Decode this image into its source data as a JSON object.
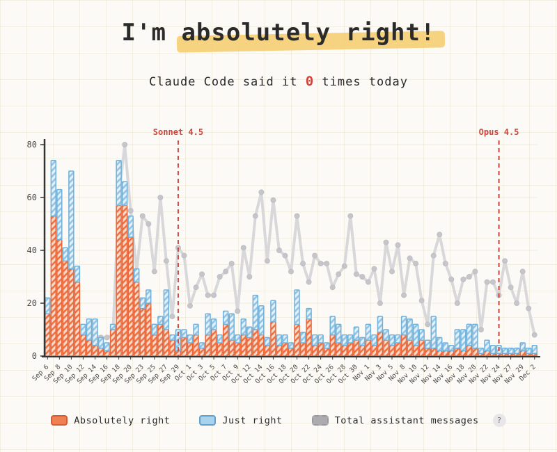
{
  "header": {
    "title_prefix": "I'm ",
    "title_highlight": "absolutely right!",
    "subtitle_before": "Claude Code said it ",
    "subtitle_count": "0",
    "subtitle_after": " times today"
  },
  "legend": {
    "items": [
      {
        "label": "Absolutely right",
        "fill": "#EF8052",
        "border": "#D95B35",
        "style": "solid"
      },
      {
        "label": "Just right",
        "fill": "#A9D3ED",
        "border": "#5F9FCC",
        "style": "solid"
      },
      {
        "label": "Total assistant messages",
        "fill": "#ABABB0",
        "border": "#97979D",
        "style": "dashed"
      }
    ],
    "help_label": "?"
  },
  "colors": {
    "paper": "#FBFAF6",
    "grid": "#E8DCC4",
    "title_highlight": "#F5C964",
    "subtitle_accent": "#D2413A",
    "bar_orange_outline": "#E8663B",
    "bar_orange_hatch": "#EE7040",
    "bar_orange_base": "#FBDACA",
    "bar_blue_outline": "#70B0D8",
    "bar_blue_hatch": "#8FC4E6",
    "bar_blue_base": "#E4F1FA",
    "line_gray": "#D8D8DB",
    "dot_gray": "#C6C6CA",
    "annotation_red": "#C9473D",
    "axis": "#333333",
    "tick_text": "#4a4a4a"
  },
  "chart_data": {
    "type": "bar",
    "stacked": true,
    "title": "",
    "xlabel": "",
    "ylabel": "",
    "ylim": [
      0,
      80
    ],
    "yticks": [
      0,
      20,
      40,
      60,
      80
    ],
    "x_label_every": 2,
    "legend_position": "bottom",
    "grid": "paper-grid",
    "categories": [
      "Sep 6",
      "Sep 7",
      "Sep 8",
      "Sep 9",
      "Sep 10",
      "Sep 11",
      "Sep 12",
      "Sep 13",
      "Sep 14",
      "Sep 15",
      "Sep 16",
      "Sep 17",
      "Sep 18",
      "Sep 19",
      "Sep 20",
      "Sep 22",
      "Sep 23",
      "Sep 24",
      "Sep 25",
      "Sep 26",
      "Sep 27",
      "Sep 28",
      "Sep 29",
      "Sep 30",
      "Oct 1",
      "Oct 2",
      "Oct 3",
      "Oct 4",
      "Oct 5",
      "Oct 6",
      "Oct 7",
      "Oct 8",
      "Oct 9",
      "Oct 11",
      "Oct 12",
      "Oct 13",
      "Oct 14",
      "Oct 15",
      "Oct 16",
      "Oct 17",
      "Oct 18",
      "Oct 19",
      "Oct 20",
      "Oct 21",
      "Oct 22",
      "Oct 23",
      "Oct 24",
      "Oct 25",
      "Oct 26",
      "Oct 27",
      "Oct 28",
      "Oct 29",
      "Oct 30",
      "Oct 31",
      "Nov 1",
      "Nov 2",
      "Nov 3",
      "Nov 4",
      "Nov 5",
      "Nov 7",
      "Nov 8",
      "Nov 9",
      "Nov 10",
      "Nov 11",
      "Nov 12",
      "Nov 13",
      "Nov 14",
      "Nov 15",
      "Nov 16",
      "Nov 17",
      "Nov 18",
      "Nov 19",
      "Nov 20",
      "Nov 21",
      "Nov 22",
      "Nov 23",
      "Nov 24",
      "Nov 26",
      "Nov 27",
      "Nov 28",
      "Nov 29",
      "Dec 1",
      "Dec 2"
    ],
    "series": [
      {
        "name": "Absolutely right",
        "type": "bar",
        "color": "#EE7040",
        "values": [
          16,
          53,
          44,
          36,
          33,
          28,
          8,
          6,
          4,
          3,
          2,
          10,
          57,
          57,
          45,
          28,
          18,
          20,
          8,
          12,
          10,
          6,
          2,
          7,
          5,
          8,
          3,
          8,
          10,
          5,
          12,
          6,
          5,
          8,
          7,
          10,
          8,
          4,
          13,
          4,
          5,
          3,
          12,
          5,
          14,
          4,
          5,
          3,
          8,
          5,
          4,
          5,
          6,
          4,
          6,
          4,
          9,
          6,
          4,
          5,
          8,
          6,
          4,
          6,
          3,
          3,
          2,
          2,
          2,
          3,
          2,
          4,
          3,
          1,
          2,
          1,
          1,
          1,
          1,
          1,
          2,
          1,
          1
        ]
      },
      {
        "name": "Just right",
        "type": "bar",
        "color": "#8FC4E6",
        "values": [
          6,
          21,
          19,
          5,
          37,
          6,
          4,
          8,
          10,
          4,
          3,
          2,
          17,
          9,
          8,
          5,
          4,
          5,
          4,
          3,
          15,
          2,
          8,
          3,
          3,
          4,
          2,
          8,
          4,
          3,
          5,
          10,
          3,
          6,
          4,
          13,
          11,
          3,
          8,
          4,
          3,
          2,
          13,
          4,
          4,
          4,
          3,
          2,
          7,
          7,
          4,
          3,
          5,
          3,
          6,
          4,
          6,
          4,
          4,
          3,
          7,
          8,
          8,
          4,
          3,
          12,
          5,
          3,
          2,
          7,
          8,
          8,
          9,
          2,
          4,
          3,
          3,
          2,
          2,
          2,
          3,
          2,
          3
        ]
      },
      {
        "name": "Total assistant messages",
        "type": "line",
        "color": "#D8D8DB",
        "values": [
          15,
          10,
          9,
          8,
          8,
          8,
          8,
          8,
          8,
          7,
          7,
          8,
          60,
          80,
          55,
          32,
          53,
          50,
          32,
          60,
          36,
          15,
          41,
          38,
          19,
          26,
          31,
          23,
          23,
          30,
          32,
          35,
          17,
          41,
          30,
          53,
          62,
          36,
          59,
          40,
          38,
          32,
          53,
          35,
          28,
          38,
          35,
          35,
          26,
          31,
          34,
          53,
          31,
          30,
          28,
          33,
          20,
          43,
          32,
          42,
          23,
          37,
          35,
          21,
          12,
          38,
          46,
          35,
          29,
          20,
          29,
          30,
          32,
          10,
          28,
          28,
          23,
          36,
          26,
          20,
          32,
          18,
          8
        ]
      }
    ],
    "annotations": [
      {
        "label": "Sonnet 4.5",
        "category": "Sep 29",
        "color": "#C9473D",
        "style": "dashed-vertical"
      },
      {
        "label": "Opus 4.5",
        "category": "Nov 24",
        "color": "#C9473D",
        "style": "dashed-vertical"
      }
    ]
  }
}
